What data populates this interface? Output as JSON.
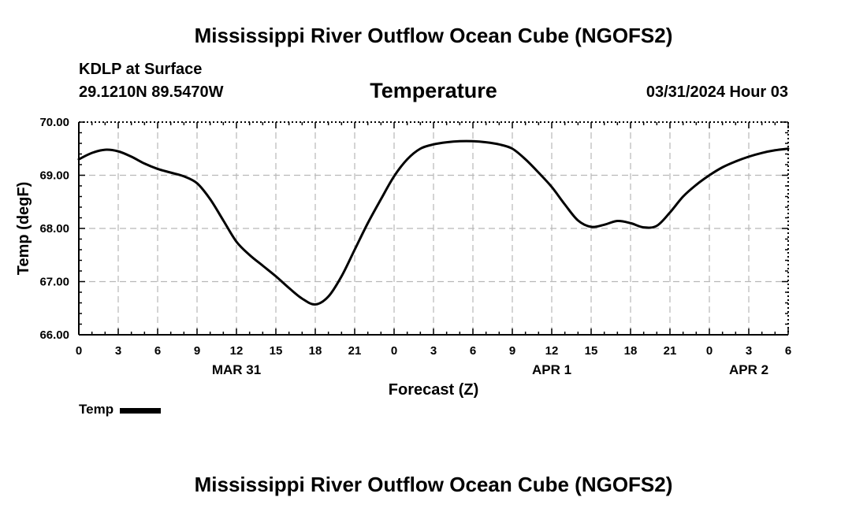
{
  "header": {
    "title": "Mississippi River Outflow Ocean Cube (NGOFS2)",
    "station": "KDLP at Surface",
    "coords": "29.1210N  89.5470W",
    "variable": "Temperature",
    "timestamp": "03/31/2024 Hour 03"
  },
  "footer": {
    "title": "Mississippi River Outflow Ocean Cube (NGOFS2)"
  },
  "legend": {
    "label": "Temp",
    "color": "#000000"
  },
  "chart_data": {
    "type": "line",
    "title": "Temperature",
    "xlabel": "Forecast (Z)",
    "ylabel": "Temp (degF)",
    "xlim": [
      0,
      54
    ],
    "ylim": [
      66.0,
      70.0
    ],
    "grid": true,
    "x_ticks": [
      0,
      3,
      6,
      9,
      12,
      15,
      18,
      21,
      24,
      27,
      30,
      33,
      36,
      39,
      42,
      45,
      48,
      51,
      54
    ],
    "x_tick_labels": [
      "0",
      "3",
      "6",
      "9",
      "12",
      "15",
      "18",
      "21",
      "0",
      "3",
      "6",
      "9",
      "12",
      "15",
      "18",
      "21",
      "0",
      "3",
      "6"
    ],
    "y_ticks": [
      66.0,
      67.0,
      68.0,
      69.0,
      70.0
    ],
    "y_tick_labels": [
      "66.00",
      "67.00",
      "68.00",
      "69.00",
      "70.00"
    ],
    "date_labels": [
      {
        "x": 12,
        "label": "MAR 31"
      },
      {
        "x": 36,
        "label": "APR 1"
      },
      {
        "x": 51,
        "label": "APR 2"
      }
    ],
    "series": [
      {
        "name": "Temp",
        "color": "#000000",
        "x": [
          0,
          1,
          2,
          3,
          4,
          5,
          6,
          7,
          8,
          9,
          10,
          11,
          12,
          13,
          14,
          15,
          16,
          17,
          18,
          19,
          20,
          21,
          22,
          23,
          24,
          25,
          26,
          27,
          28,
          29,
          30,
          31,
          32,
          33,
          34,
          35,
          36,
          37,
          38,
          39,
          40,
          41,
          42,
          43,
          44,
          45,
          46,
          47,
          48,
          49,
          50,
          51,
          52,
          53,
          54
        ],
        "y": [
          69.3,
          69.42,
          69.48,
          69.45,
          69.35,
          69.22,
          69.12,
          69.05,
          68.98,
          68.85,
          68.55,
          68.15,
          67.75,
          67.5,
          67.3,
          67.1,
          66.88,
          66.68,
          66.57,
          66.72,
          67.1,
          67.6,
          68.1,
          68.55,
          68.98,
          69.3,
          69.5,
          69.58,
          69.62,
          69.64,
          69.64,
          69.62,
          69.58,
          69.5,
          69.3,
          69.05,
          68.78,
          68.45,
          68.15,
          68.03,
          68.07,
          68.14,
          68.1,
          68.02,
          68.05,
          68.3,
          68.6,
          68.82,
          69.0,
          69.15,
          69.26,
          69.35,
          69.42,
          69.47,
          69.5
        ]
      }
    ]
  }
}
